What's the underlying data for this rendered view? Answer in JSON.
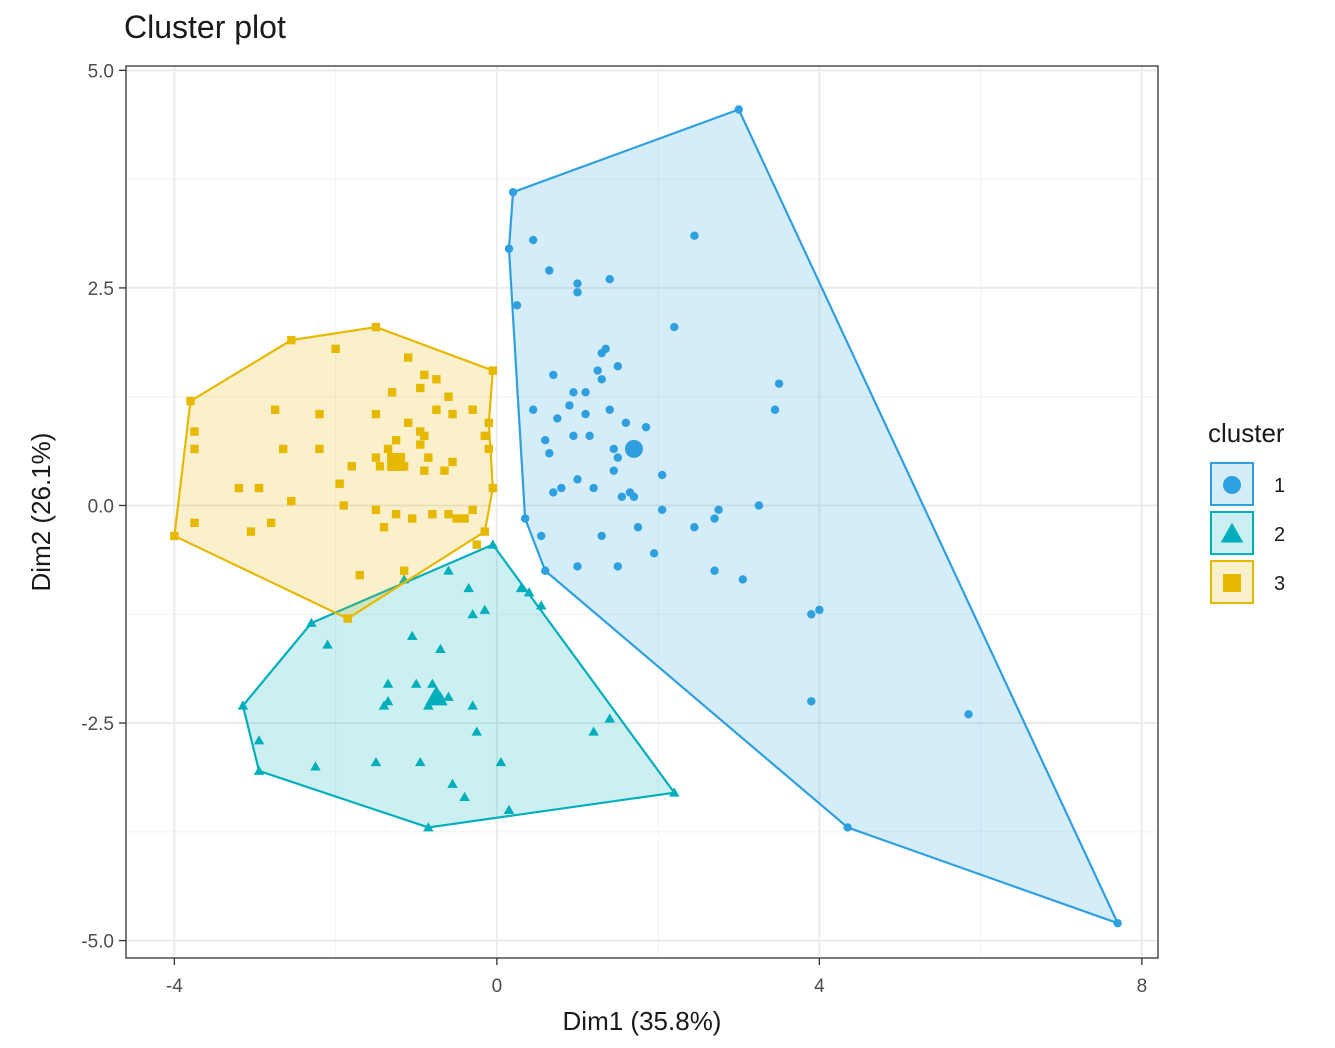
{
  "chart_data": {
    "type": "scatter",
    "title": "Cluster plot",
    "xlabel": "Dim1 (35.8%)",
    "ylabel": "Dim2 (26.1%)",
    "xlim": [
      -4.6,
      8.2
    ],
    "ylim": [
      -5.2,
      5.05
    ],
    "xticks": [
      -4,
      0,
      4,
      8
    ],
    "xtick_labels": [
      "-4",
      "0",
      "4",
      "8"
    ],
    "yticks": [
      -5,
      -2.5,
      0,
      2.5,
      5
    ],
    "ytick_labels": [
      "-5.0",
      "-2.5",
      "0.0",
      "2.5",
      "5.0"
    ],
    "grid": true,
    "legend": {
      "title": "cluster",
      "position": "right"
    },
    "series": [
      {
        "name": "1",
        "color": "#2E9FDF",
        "marker": "circle",
        "centroid": [
          1.7,
          0.65
        ],
        "hull": [
          [
            3.0,
            4.55
          ],
          [
            7.7,
            -4.8
          ],
          [
            4.35,
            -3.7
          ],
          [
            0.6,
            -0.75
          ],
          [
            0.35,
            -0.15
          ],
          [
            0.15,
            2.95
          ],
          [
            0.2,
            3.6
          ]
        ],
        "points": [
          [
            3.0,
            4.55
          ],
          [
            7.7,
            -4.8
          ],
          [
            4.35,
            -3.7
          ],
          [
            0.6,
            -0.75
          ],
          [
            0.35,
            -0.15
          ],
          [
            0.15,
            2.95
          ],
          [
            0.2,
            3.6
          ],
          [
            0.45,
            3.05
          ],
          [
            0.65,
            2.7
          ],
          [
            1.0,
            2.55
          ],
          [
            1.0,
            2.45
          ],
          [
            1.4,
            2.6
          ],
          [
            2.45,
            3.1
          ],
          [
            0.25,
            2.3
          ],
          [
            2.2,
            2.05
          ],
          [
            1.35,
            1.8
          ],
          [
            1.3,
            1.75
          ],
          [
            1.5,
            1.6
          ],
          [
            1.25,
            1.55
          ],
          [
            1.3,
            1.45
          ],
          [
            0.7,
            1.5
          ],
          [
            0.95,
            1.3
          ],
          [
            1.1,
            1.3
          ],
          [
            3.5,
            1.4
          ],
          [
            0.45,
            1.1
          ],
          [
            0.9,
            1.15
          ],
          [
            0.75,
            1.0
          ],
          [
            1.1,
            1.05
          ],
          [
            1.4,
            1.1
          ],
          [
            1.6,
            0.95
          ],
          [
            1.85,
            0.9
          ],
          [
            3.45,
            1.1
          ],
          [
            0.6,
            0.75
          ],
          [
            0.95,
            0.8
          ],
          [
            1.15,
            0.8
          ],
          [
            0.65,
            0.6
          ],
          [
            1.45,
            0.65
          ],
          [
            1.5,
            0.55
          ],
          [
            1.45,
            0.4
          ],
          [
            2.05,
            0.35
          ],
          [
            1.0,
            0.3
          ],
          [
            0.8,
            0.2
          ],
          [
            1.2,
            0.2
          ],
          [
            1.65,
            0.15
          ],
          [
            1.7,
            0.1
          ],
          [
            1.55,
            0.1
          ],
          [
            0.7,
            0.15
          ],
          [
            2.05,
            -0.05
          ],
          [
            3.25,
            0.0
          ],
          [
            2.75,
            -0.05
          ],
          [
            2.7,
            -0.15
          ],
          [
            0.55,
            -0.35
          ],
          [
            1.3,
            -0.35
          ],
          [
            1.75,
            -0.25
          ],
          [
            2.45,
            -0.25
          ],
          [
            1.95,
            -0.55
          ],
          [
            1.0,
            -0.7
          ],
          [
            1.5,
            -0.7
          ],
          [
            2.7,
            -0.75
          ],
          [
            3.05,
            -0.85
          ],
          [
            4.0,
            -1.2
          ],
          [
            3.9,
            -1.25
          ],
          [
            3.9,
            -2.25
          ],
          [
            5.85,
            -2.4
          ]
        ]
      },
      {
        "name": "2",
        "color": "#00AFBB",
        "marker": "triangle",
        "centroid": [
          -0.75,
          -2.2
        ],
        "hull": [
          [
            -0.05,
            -0.45
          ],
          [
            2.2,
            -3.3
          ],
          [
            -0.85,
            -3.7
          ],
          [
            -2.95,
            -3.05
          ],
          [
            -3.15,
            -2.3
          ],
          [
            -2.3,
            -1.35
          ]
        ],
        "points": [
          [
            -0.05,
            -0.45
          ],
          [
            2.2,
            -3.3
          ],
          [
            -0.85,
            -3.7
          ],
          [
            -2.95,
            -3.05
          ],
          [
            -3.15,
            -2.3
          ],
          [
            -2.3,
            -1.35
          ],
          [
            -0.6,
            -0.75
          ],
          [
            -1.15,
            -0.85
          ],
          [
            -0.35,
            -0.95
          ],
          [
            0.3,
            -0.95
          ],
          [
            0.4,
            -1.0
          ],
          [
            0.55,
            -1.15
          ],
          [
            -0.3,
            -1.25
          ],
          [
            -0.15,
            -1.2
          ],
          [
            -1.05,
            -1.5
          ],
          [
            -0.7,
            -1.65
          ],
          [
            -2.1,
            -1.6
          ],
          [
            -1.35,
            -2.05
          ],
          [
            -1.0,
            -2.05
          ],
          [
            -0.8,
            -2.05
          ],
          [
            -0.75,
            -2.15
          ],
          [
            -0.7,
            -2.2
          ],
          [
            -1.35,
            -2.25
          ],
          [
            -1.4,
            -2.3
          ],
          [
            -0.85,
            -2.3
          ],
          [
            -0.3,
            -2.3
          ],
          [
            -0.6,
            -2.2
          ],
          [
            -0.25,
            -2.6
          ],
          [
            1.4,
            -2.45
          ],
          [
            1.2,
            -2.6
          ],
          [
            -2.95,
            -2.7
          ],
          [
            -2.25,
            -3.0
          ],
          [
            -1.5,
            -2.95
          ],
          [
            -0.95,
            -2.95
          ],
          [
            0.05,
            -2.95
          ],
          [
            -0.55,
            -3.2
          ],
          [
            -0.4,
            -3.35
          ],
          [
            0.15,
            -3.5
          ]
        ]
      },
      {
        "name": "3",
        "color": "#E7B800",
        "marker": "square",
        "centroid": [
          -1.25,
          0.5
        ],
        "hull": [
          [
            -1.5,
            2.05
          ],
          [
            -0.05,
            1.55
          ],
          [
            -0.1,
            0.95
          ],
          [
            -0.05,
            0.2
          ],
          [
            -0.15,
            -0.3
          ],
          [
            -1.85,
            -1.3
          ],
          [
            -4.0,
            -0.35
          ],
          [
            -3.8,
            1.2
          ],
          [
            -2.55,
            1.9
          ]
        ],
        "points": [
          [
            -1.5,
            2.05
          ],
          [
            -0.05,
            1.55
          ],
          [
            -0.1,
            0.95
          ],
          [
            -0.05,
            0.2
          ],
          [
            -0.15,
            -0.3
          ],
          [
            -1.85,
            -1.3
          ],
          [
            -4.0,
            -0.35
          ],
          [
            -3.8,
            1.2
          ],
          [
            -2.55,
            1.9
          ],
          [
            -2.0,
            1.8
          ],
          [
            -1.1,
            1.7
          ],
          [
            -0.9,
            1.5
          ],
          [
            -0.75,
            1.45
          ],
          [
            -0.95,
            1.35
          ],
          [
            -1.3,
            1.3
          ],
          [
            -0.6,
            1.25
          ],
          [
            -0.75,
            1.1
          ],
          [
            -0.55,
            1.05
          ],
          [
            -0.3,
            1.1
          ],
          [
            -2.75,
            1.1
          ],
          [
            -2.2,
            1.05
          ],
          [
            -1.5,
            1.05
          ],
          [
            -1.1,
            0.95
          ],
          [
            -0.95,
            0.85
          ],
          [
            -1.25,
            0.75
          ],
          [
            -0.9,
            0.8
          ],
          [
            -0.95,
            0.7
          ],
          [
            -1.35,
            0.65
          ],
          [
            -1.5,
            0.55
          ],
          [
            -0.85,
            0.55
          ],
          [
            -0.55,
            0.5
          ],
          [
            -0.65,
            0.4
          ],
          [
            -1.45,
            0.45
          ],
          [
            -1.15,
            0.45
          ],
          [
            -0.9,
            0.4
          ],
          [
            -0.15,
            0.8
          ],
          [
            -0.1,
            0.65
          ],
          [
            -3.75,
            0.85
          ],
          [
            -2.65,
            0.65
          ],
          [
            -2.2,
            0.65
          ],
          [
            -3.75,
            0.65
          ],
          [
            -1.8,
            0.45
          ],
          [
            -1.95,
            0.25
          ],
          [
            -2.95,
            0.2
          ],
          [
            -3.2,
            0.2
          ],
          [
            -2.55,
            0.05
          ],
          [
            -1.9,
            0.0
          ],
          [
            -1.5,
            -0.05
          ],
          [
            -1.25,
            -0.1
          ],
          [
            -1.05,
            -0.15
          ],
          [
            -0.8,
            -0.1
          ],
          [
            -0.6,
            -0.1
          ],
          [
            -0.5,
            -0.15
          ],
          [
            -0.4,
            -0.15
          ],
          [
            -0.3,
            -0.05
          ],
          [
            -3.75,
            -0.2
          ],
          [
            -2.8,
            -0.2
          ],
          [
            -3.05,
            -0.3
          ],
          [
            -1.4,
            -0.25
          ],
          [
            -0.25,
            -0.45
          ],
          [
            -1.15,
            -0.75
          ],
          [
            -1.7,
            -0.8
          ]
        ]
      }
    ]
  }
}
